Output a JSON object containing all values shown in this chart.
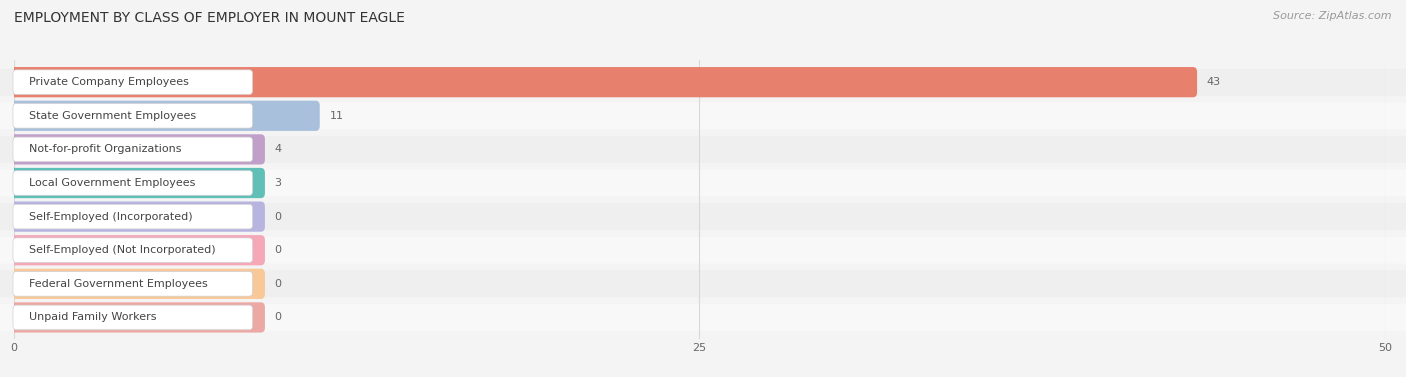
{
  "title": "EMPLOYMENT BY CLASS OF EMPLOYER IN MOUNT EAGLE",
  "source": "Source: ZipAtlas.com",
  "categories": [
    "Private Company Employees",
    "State Government Employees",
    "Not-for-profit Organizations",
    "Local Government Employees",
    "Self-Employed (Incorporated)",
    "Self-Employed (Not Incorporated)",
    "Federal Government Employees",
    "Unpaid Family Workers"
  ],
  "values": [
    43,
    11,
    4,
    3,
    0,
    0,
    0,
    0
  ],
  "bar_colors": [
    "#e8806e",
    "#a8c0dc",
    "#c0a0c8",
    "#60c0b8",
    "#b8b4e0",
    "#f4a8b8",
    "#f8c898",
    "#eca8a4"
  ],
  "background_color": "#f4f4f4",
  "xlim_max": 50,
  "xticks": [
    0,
    25,
    50
  ],
  "grid_color": "#d8d8d8",
  "row_colors": [
    "#efefef",
    "#f8f8f8"
  ],
  "label_box_color": "#ffffff",
  "label_box_edge": "#d0d0d0",
  "text_color": "#444444",
  "value_color": "#666666",
  "title_color": "#333333",
  "source_color": "#999999",
  "title_fontsize": 10,
  "label_fontsize": 8,
  "value_fontsize": 8,
  "source_fontsize": 8
}
